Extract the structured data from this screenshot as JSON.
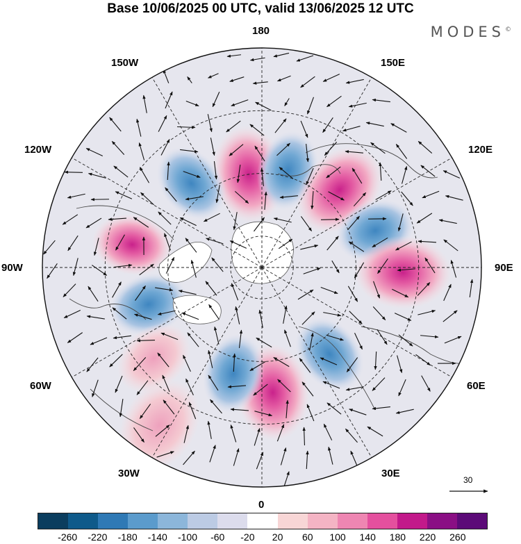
{
  "title": "Base 10/06/2025 00 UTC, valid 13/06/2025 12 UTC",
  "brand": "MODES",
  "brand_mark": "©",
  "lon_labels": {
    "top": "180",
    "bottom": "0",
    "left": "90W",
    "right": "90E",
    "upper_left": "150W",
    "upper_right": "150E",
    "mid_upper_left": "120W",
    "mid_upper_right": "120E",
    "mid_lower_left": "60W",
    "mid_lower_right": "60E",
    "lower_left": "30W",
    "lower_right": "30E"
  },
  "reference_vector": "30",
  "colorbar": {
    "ticks": [
      "-260",
      "-220",
      "-180",
      "-140",
      "-100",
      "-60",
      "-20",
      "20",
      "60",
      "100",
      "140",
      "180",
      "220",
      "260"
    ],
    "colors": [
      "#0b3d5e",
      "#0f5a8a",
      "#2f79b5",
      "#5b9bcc",
      "#8cb6da",
      "#bccbe4",
      "#dcdcec",
      "#ffffff",
      "#f8d6d6",
      "#f4b4c4",
      "#ee86b2",
      "#e4509e",
      "#c2198a",
      "#8a0f84",
      "#5c0b78"
    ]
  },
  "map_colors": {
    "coast": "#4a4a4a",
    "grid": "#222222",
    "ocean_neutral": "#eeeeee",
    "neg_light": "#cdd7ea",
    "neg_mid": "#8eb5da",
    "neg_strong": "#4f93c8",
    "pos_light": "#f4d3d6",
    "pos_mid": "#f0a3c0",
    "pos_strong": "#e56aa6",
    "pos_peak": "#cf2a8e"
  },
  "anomaly_centers": [
    {
      "type": "positive",
      "lat": 60,
      "lon": -172
    },
    {
      "type": "negative",
      "lat": 58,
      "lon": 165
    },
    {
      "type": "negative",
      "lat": 55,
      "lon": -140
    },
    {
      "type": "positive",
      "lat": 55,
      "lon": 135
    },
    {
      "type": "negative",
      "lat": 52,
      "lon": 108
    },
    {
      "type": "positive",
      "lat": 48,
      "lon": -100
    },
    {
      "type": "positive",
      "lat": 45,
      "lon": 88
    },
    {
      "type": "negative",
      "lat": 52,
      "lon": -72
    },
    {
      "type": "negative",
      "lat": 55,
      "lon": 38
    },
    {
      "type": "positive",
      "lat": 50,
      "lon": 5
    },
    {
      "type": "negative",
      "lat": 55,
      "lon": -15
    },
    {
      "type": "positive",
      "lat": 45,
      "lon": -50
    },
    {
      "type": "positive",
      "lat": 30,
      "lon": -33
    }
  ]
}
